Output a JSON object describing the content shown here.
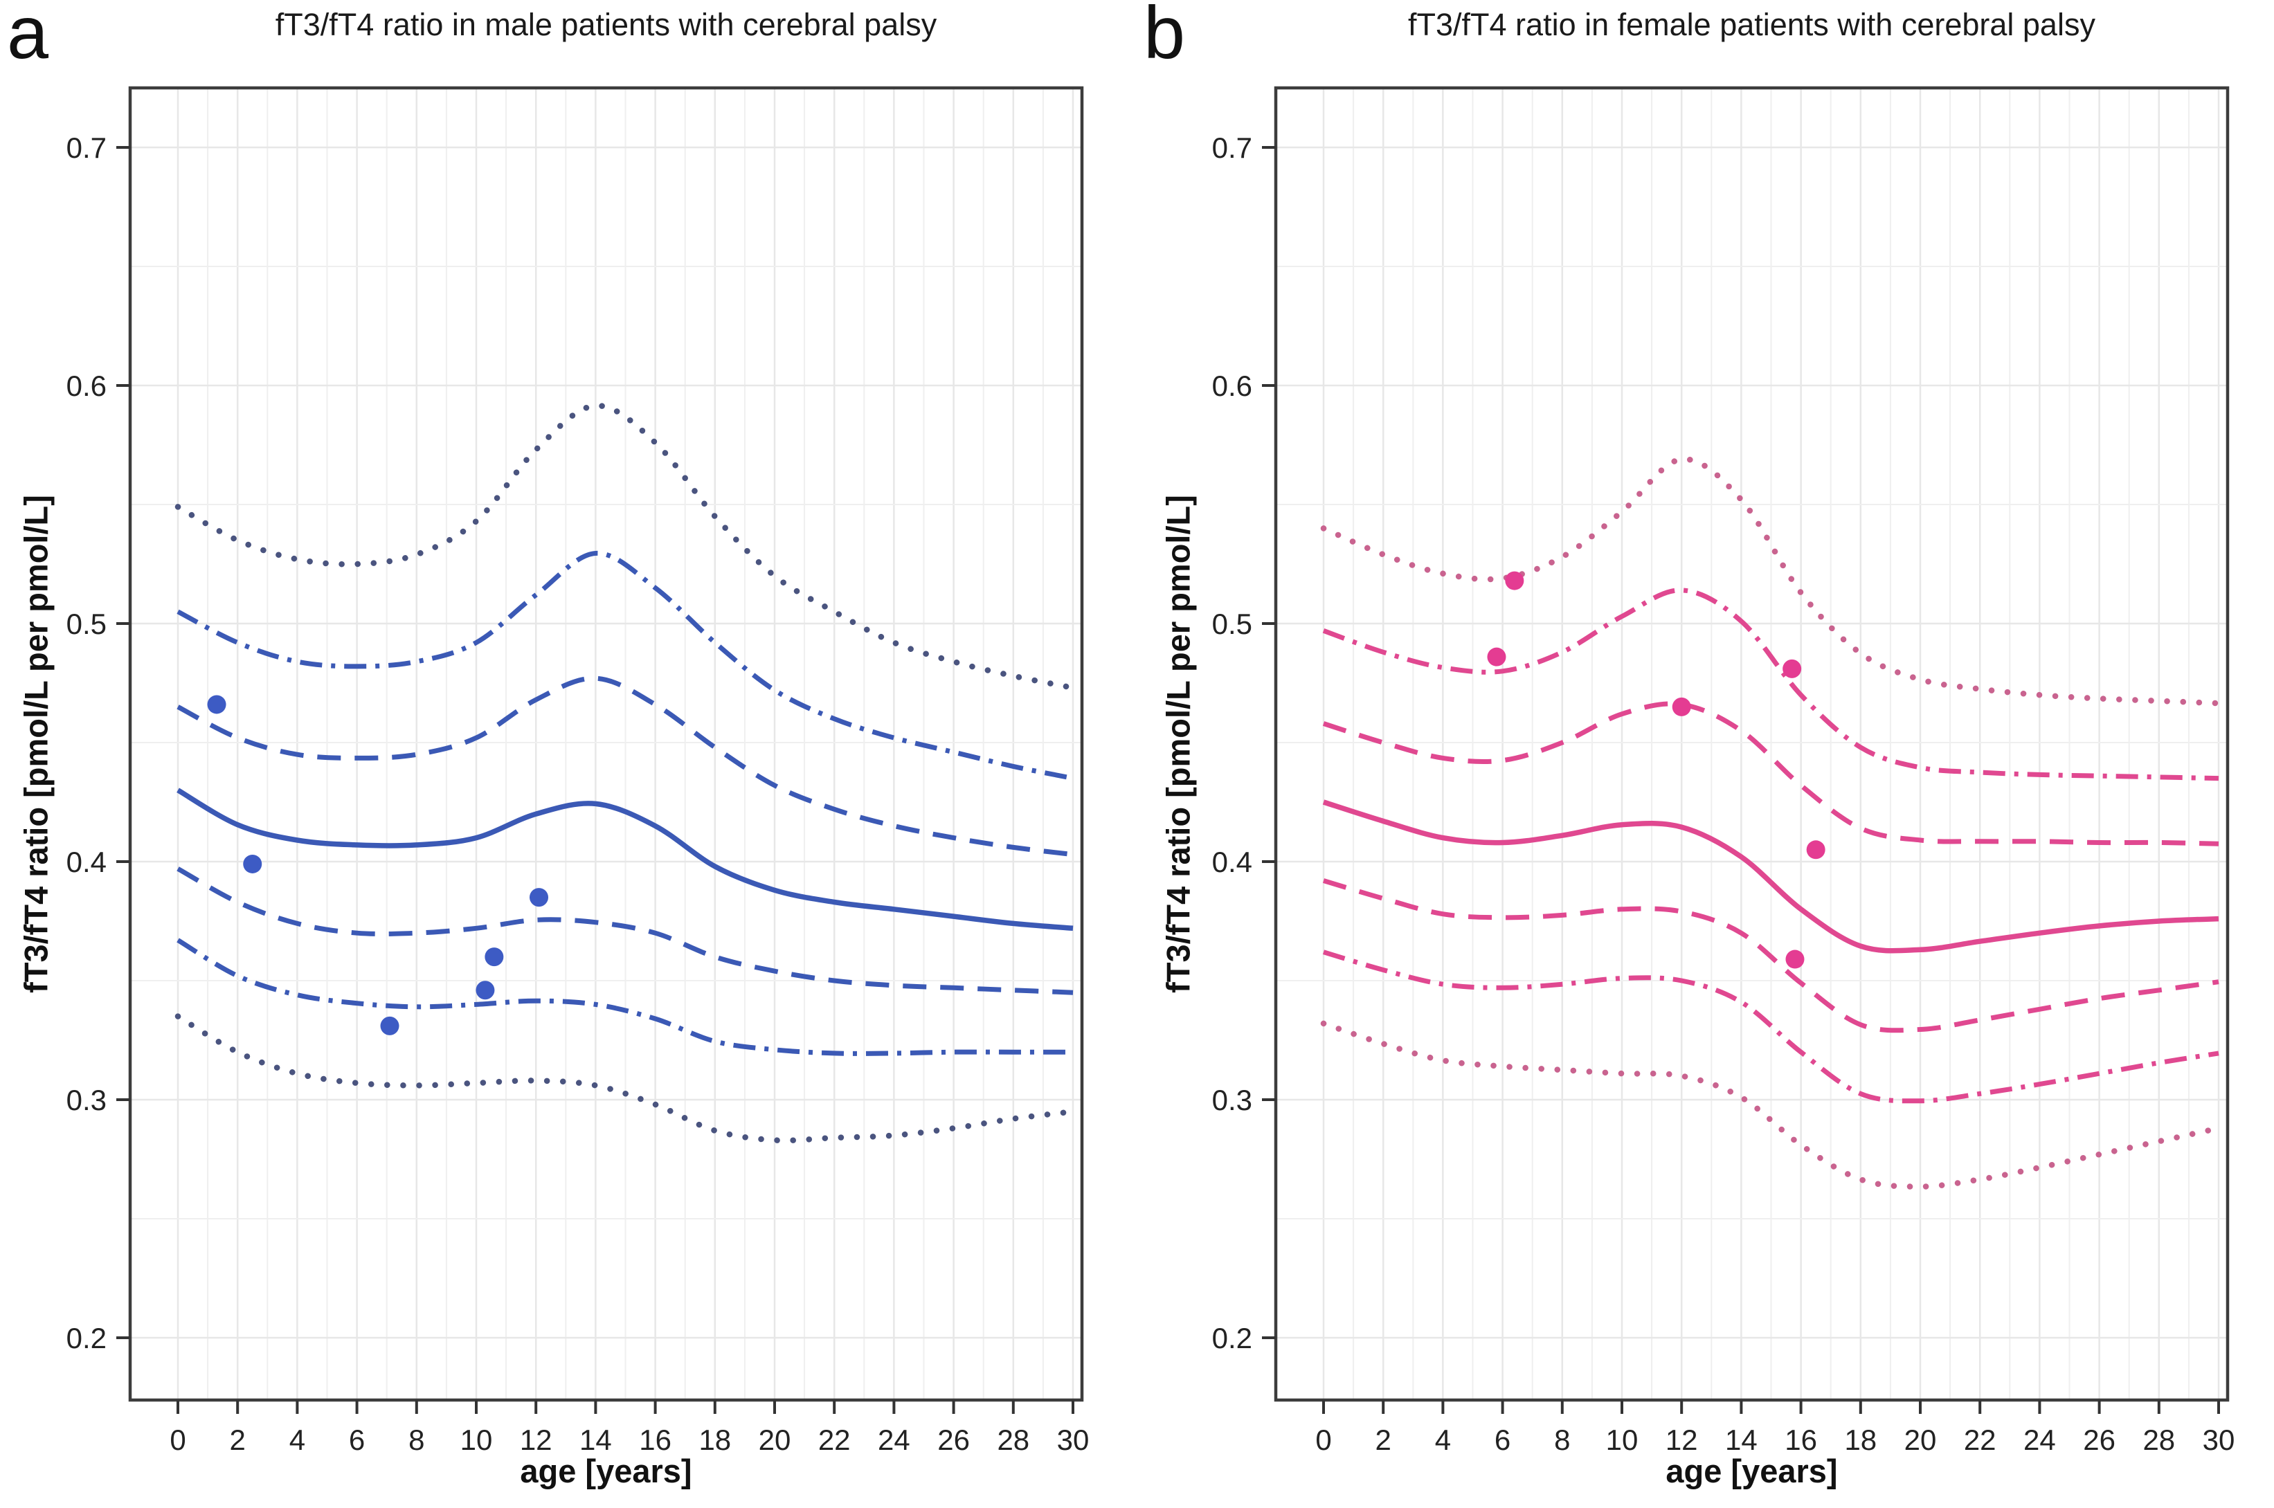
{
  "chart_data": [
    {
      "panel_letter": "a",
      "title": "fT3/fT4 ratio in male patients with cerebral palsy",
      "xlabel": "age [years]",
      "ylabel": "fT3/fT4 ratio [pmol/L per pmol/L]",
      "type": "line+scatter",
      "legend": "none",
      "grid": "minor x every 1 year, minor y every 0.05",
      "line_color": "#3B59B5",
      "dotted_color": "#4A547F",
      "point_color": "#3D5BC4",
      "xlim": [
        -1.6,
        30.3
      ],
      "ylim": [
        0.174,
        0.725
      ],
      "x_ticks": [
        0,
        2,
        4,
        6,
        8,
        10,
        12,
        14,
        16,
        18,
        20,
        22,
        24,
        26,
        28,
        30
      ],
      "y_ticks": [
        0.2,
        0.3,
        0.4,
        0.5,
        0.6,
        0.7
      ],
      "ages": [
        0,
        2,
        4,
        6,
        8,
        10,
        12,
        14,
        16,
        18,
        20,
        22,
        24,
        26,
        28,
        30
      ],
      "series": [
        {
          "name": "upper-dotted",
          "style": "dotted",
          "values": [
            0.549,
            0.535,
            0.527,
            0.525,
            0.529,
            0.543,
            0.573,
            0.5915,
            0.576,
            0.545,
            0.52,
            0.505,
            0.492,
            0.484,
            0.478,
            0.473
          ]
        },
        {
          "name": "upper-dashdot",
          "style": "dashdot",
          "values": [
            0.505,
            0.492,
            0.484,
            0.482,
            0.484,
            0.492,
            0.512,
            0.5295,
            0.515,
            0.492,
            0.472,
            0.46,
            0.452,
            0.446,
            0.44,
            0.435
          ]
        },
        {
          "name": "upper-dashed",
          "style": "dashed",
          "values": [
            0.465,
            0.452,
            0.445,
            0.4435,
            0.445,
            0.452,
            0.468,
            0.477,
            0.466,
            0.448,
            0.432,
            0.422,
            0.415,
            0.41,
            0.406,
            0.403
          ]
        },
        {
          "name": "median-solid",
          "style": "solid",
          "values": [
            0.43,
            0.4155,
            0.409,
            0.407,
            0.407,
            0.41,
            0.42,
            0.4243,
            0.415,
            0.398,
            0.388,
            0.383,
            0.38,
            0.377,
            0.374,
            0.372
          ]
        },
        {
          "name": "lower-dashed",
          "style": "dashed",
          "values": [
            0.397,
            0.383,
            0.374,
            0.37,
            0.37,
            0.372,
            0.3755,
            0.3745,
            0.37,
            0.36,
            0.354,
            0.35,
            0.348,
            0.347,
            0.346,
            0.345
          ]
        },
        {
          "name": "lower-dashdot",
          "style": "dashdot",
          "values": [
            0.367,
            0.352,
            0.344,
            0.3405,
            0.339,
            0.34,
            0.3415,
            0.34,
            0.334,
            0.3245,
            0.321,
            0.3195,
            0.3195,
            0.32,
            0.32,
            0.32
          ]
        },
        {
          "name": "lower-dotted",
          "style": "dotted",
          "values": [
            0.335,
            0.32,
            0.311,
            0.307,
            0.306,
            0.307,
            0.308,
            0.306,
            0.298,
            0.287,
            0.283,
            0.284,
            0.285,
            0.288,
            0.292,
            0.295
          ]
        }
      ],
      "scatter": [
        [
          1.3,
          0.466
        ],
        [
          2.5,
          0.399
        ],
        [
          7.1,
          0.331
        ],
        [
          10.3,
          0.346
        ],
        [
          10.6,
          0.36
        ],
        [
          12.1,
          0.385
        ]
      ]
    },
    {
      "panel_letter": "b",
      "title": "fT3/fT4 ratio in female patients with cerebral palsy",
      "xlabel": "age [years]",
      "ylabel": "fT3/fT4 ratio [pmol/L per pmol/L]",
      "type": "line+scatter",
      "legend": "none",
      "grid": "minor x every 1 year, minor y every 0.05",
      "line_color": "#E04890",
      "dotted_color": "#C9638F",
      "point_color": "#E43C92",
      "xlim": [
        -1.6,
        30.3
      ],
      "ylim": [
        0.174,
        0.725
      ],
      "x_ticks": [
        0,
        2,
        4,
        6,
        8,
        10,
        12,
        14,
        16,
        18,
        20,
        22,
        24,
        26,
        28,
        30
      ],
      "y_ticks": [
        0.2,
        0.3,
        0.4,
        0.5,
        0.6,
        0.7
      ],
      "ages": [
        0,
        2,
        4,
        6,
        8,
        10,
        12,
        14,
        16,
        18,
        20,
        22,
        24,
        26,
        28,
        30
      ],
      "series": [
        {
          "name": "upper-dotted",
          "style": "dotted",
          "values": [
            0.54,
            0.529,
            0.521,
            0.519,
            0.528,
            0.547,
            0.569,
            0.552,
            0.513,
            0.4875,
            0.4765,
            0.4725,
            0.47,
            0.4685,
            0.4675,
            0.4665
          ]
        },
        {
          "name": "upper-dashdot",
          "style": "dashdot",
          "values": [
            0.497,
            0.488,
            0.4815,
            0.48,
            0.488,
            0.503,
            0.514,
            0.501,
            0.47,
            0.448,
            0.4395,
            0.4375,
            0.4365,
            0.436,
            0.4355,
            0.435
          ]
        },
        {
          "name": "upper-dashed",
          "style": "dashed",
          "values": [
            0.458,
            0.45,
            0.4435,
            0.4425,
            0.45,
            0.462,
            0.466,
            0.455,
            0.432,
            0.414,
            0.409,
            0.4085,
            0.4085,
            0.408,
            0.408,
            0.4075
          ]
        },
        {
          "name": "median-solid",
          "style": "solid",
          "values": [
            0.425,
            0.417,
            0.41,
            0.408,
            0.411,
            0.4155,
            0.4145,
            0.402,
            0.38,
            0.3645,
            0.363,
            0.3665,
            0.37,
            0.373,
            0.375,
            0.376
          ]
        },
        {
          "name": "lower-dashed",
          "style": "dashed",
          "values": [
            0.392,
            0.3845,
            0.378,
            0.3765,
            0.3775,
            0.38,
            0.379,
            0.37,
            0.349,
            0.3315,
            0.3295,
            0.3335,
            0.338,
            0.3425,
            0.346,
            0.3495
          ]
        },
        {
          "name": "lower-dashdot",
          "style": "dashdot",
          "values": [
            0.362,
            0.3545,
            0.3485,
            0.347,
            0.3485,
            0.351,
            0.35,
            0.341,
            0.32,
            0.3025,
            0.2995,
            0.3025,
            0.3065,
            0.311,
            0.3155,
            0.3195
          ]
        },
        {
          "name": "lower-dotted",
          "style": "dotted",
          "values": [
            0.332,
            0.3235,
            0.3165,
            0.314,
            0.3125,
            0.311,
            0.31,
            0.301,
            0.281,
            0.2665,
            0.2635,
            0.2665,
            0.2715,
            0.277,
            0.2825,
            0.288
          ]
        }
      ],
      "scatter": [
        [
          6.4,
          0.518
        ],
        [
          5.8,
          0.486
        ],
        [
          12.0,
          0.465
        ],
        [
          15.7,
          0.481
        ],
        [
          16.5,
          0.405
        ],
        [
          15.8,
          0.359
        ]
      ]
    }
  ]
}
